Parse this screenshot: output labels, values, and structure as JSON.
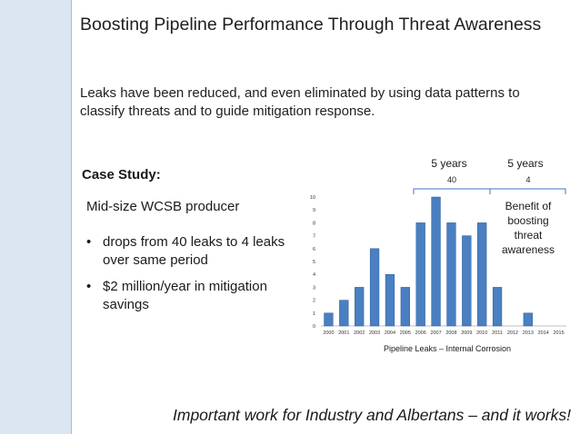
{
  "slide": {
    "title": "Boosting Pipeline Performance Through Threat Awareness",
    "intro": "Leaks have been reduced, and even eliminated by using data patterns to classify threats and to guide mitigation response.",
    "case_study_title": "Case Study:",
    "producer": "Mid-size WCSB producer",
    "bullets": [
      "drops from 40 leaks to 4 leaks over same period",
      "$2 million/year in mitigation savings"
    ],
    "footer": "Important work for Industry and Albertans – and it works!"
  },
  "annotations": {
    "period1_label": "5 years",
    "period1_total": "40",
    "period2_label": "5 years",
    "period2_total": "4",
    "benefit_text": [
      "Benefit of",
      "boosting",
      "threat",
      "awareness"
    ]
  },
  "colors": {
    "bar": "#4a7fc1",
    "bar_edge": "#2f5f9e",
    "sidebar": "#dce6f2"
  },
  "chart_data": {
    "type": "bar",
    "title": "",
    "xlabel": "Pipeline Leaks – Internal Corrosion",
    "ylabel": "",
    "categories": [
      "2000",
      "2001",
      "2002",
      "2003",
      "2004",
      "2005",
      "2006",
      "2007",
      "2008",
      "2009",
      "2010",
      "2011",
      "2012",
      "2013",
      "2014",
      "2015"
    ],
    "values": [
      1,
      2,
      3,
      6,
      4,
      3,
      8,
      10,
      8,
      7,
      8,
      3,
      0,
      1,
      0,
      0
    ],
    "ylim": [
      0,
      10
    ],
    "yticks": [
      0,
      1,
      2,
      3,
      4,
      5,
      6,
      7,
      8,
      9,
      10
    ],
    "grid": false,
    "legend": "none"
  }
}
